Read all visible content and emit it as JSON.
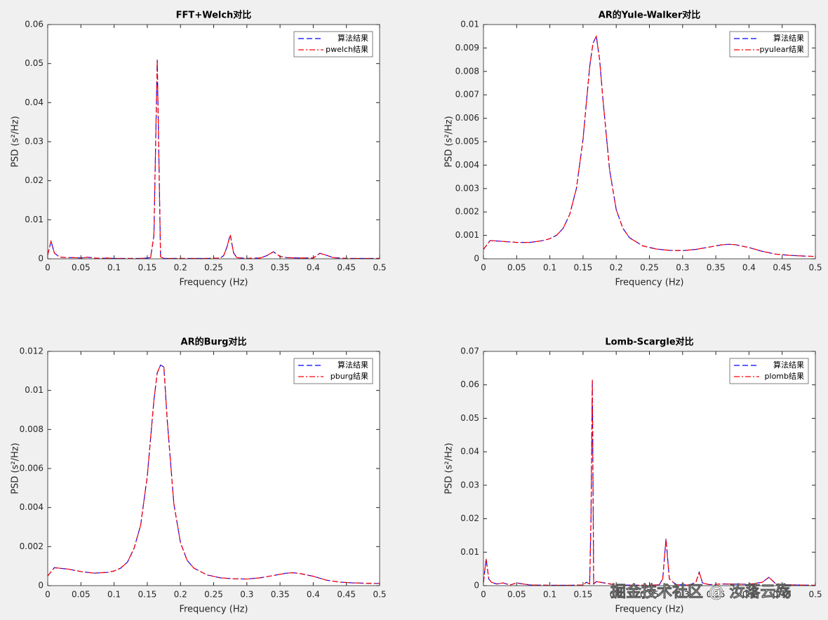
{
  "chart_data": [
    {
      "type": "line",
      "title": "FFT+Welch对比",
      "xlabel": "Frequency (Hz)",
      "ylabel": "PSD (s²/Hz)",
      "legend": "northeast",
      "xlim": [
        0,
        0.5
      ],
      "xticks": [
        0,
        0.05,
        0.1,
        0.15,
        0.2,
        0.25,
        0.3,
        0.35,
        0.4,
        0.45,
        0.5
      ],
      "ylim": [
        0,
        0.06
      ],
      "yticks": [
        0,
        0.01,
        0.02,
        0.03,
        0.04,
        0.05,
        0.06
      ],
      "x": [
        0,
        0.005,
        0.01,
        0.015,
        0.02,
        0.03,
        0.04,
        0.05,
        0.06,
        0.07,
        0.08,
        0.09,
        0.1,
        0.11,
        0.12,
        0.13,
        0.14,
        0.15,
        0.155,
        0.16,
        0.165,
        0.17,
        0.175,
        0.18,
        0.2,
        0.22,
        0.24,
        0.26,
        0.265,
        0.27,
        0.275,
        0.28,
        0.285,
        0.3,
        0.32,
        0.33,
        0.34,
        0.35,
        0.36,
        0.38,
        0.4,
        0.41,
        0.42,
        0.43,
        0.45,
        0.47,
        0.5
      ],
      "series": [
        {
          "name": "算法结果",
          "color": "#0000ff",
          "linestyle": "dashed",
          "values": [
            0.001,
            0.0045,
            0.0015,
            0.0008,
            0.0004,
            0.0003,
            0.0003,
            0.0002,
            0.0004,
            0.0002,
            0.0001,
            0.0002,
            0.0001,
            0.0001,
            0.0001,
            0.0001,
            0.0001,
            0.0002,
            0.0003,
            0.006,
            0.051,
            0.0005,
            0.0001,
            0.0001,
            0.0001,
            0.0001,
            0.0001,
            0.0002,
            0.0008,
            0.003,
            0.0062,
            0.0015,
            0.0003,
            0.0001,
            0.0002,
            0.0008,
            0.0018,
            0.0006,
            0.0003,
            0.0002,
            0.0002,
            0.0014,
            0.0009,
            0.0003,
            0.0001,
            0.0001,
            0.0001
          ]
        },
        {
          "name": "pwelch结果",
          "color": "#ff0000",
          "linestyle": "dashdot",
          "values": [
            0.001,
            0.0045,
            0.0015,
            0.0008,
            0.0004,
            0.0003,
            0.0003,
            0.0002,
            0.0004,
            0.0002,
            0.0001,
            0.0002,
            0.0001,
            0.0001,
            0.0001,
            0.0001,
            0.0001,
            0.0002,
            0.0003,
            0.006,
            0.051,
            0.0005,
            0.0001,
            0.0001,
            0.0001,
            0.0001,
            0.0001,
            0.0002,
            0.0008,
            0.003,
            0.0062,
            0.0015,
            0.0003,
            0.0001,
            0.0002,
            0.0008,
            0.0018,
            0.0006,
            0.0003,
            0.0002,
            0.0002,
            0.0014,
            0.0009,
            0.0003,
            0.0001,
            0.0001,
            0.0001
          ]
        }
      ]
    },
    {
      "type": "line",
      "title": "AR的Yule-Walker对比",
      "xlabel": "Frequency (Hz)",
      "ylabel": "PSD (s²/Hz)",
      "legend": "northeast",
      "xlim": [
        0,
        0.5
      ],
      "xticks": [
        0,
        0.05,
        0.1,
        0.15,
        0.2,
        0.25,
        0.3,
        0.35,
        0.4,
        0.45,
        0.5
      ],
      "ylim": [
        0,
        0.01
      ],
      "yticks": [
        0,
        0.001,
        0.002,
        0.003,
        0.004,
        0.005,
        0.006,
        0.007,
        0.008,
        0.009,
        0.01
      ],
      "x": [
        0,
        0.01,
        0.03,
        0.05,
        0.07,
        0.09,
        0.1,
        0.11,
        0.12,
        0.13,
        0.14,
        0.15,
        0.16,
        0.165,
        0.17,
        0.175,
        0.18,
        0.19,
        0.2,
        0.21,
        0.22,
        0.24,
        0.26,
        0.28,
        0.3,
        0.32,
        0.34,
        0.36,
        0.37,
        0.38,
        0.4,
        0.42,
        0.44,
        0.46,
        0.48,
        0.5
      ],
      "series": [
        {
          "name": "算法结果",
          "color": "#0000ff",
          "linestyle": "dashed",
          "values": [
            0.0004,
            0.00078,
            0.00074,
            0.0007,
            0.0007,
            0.00078,
            0.00086,
            0.001,
            0.0013,
            0.0019,
            0.003,
            0.0051,
            0.0082,
            0.0092,
            0.0095,
            0.0085,
            0.0068,
            0.0038,
            0.0021,
            0.0013,
            0.0009,
            0.00055,
            0.00042,
            0.00036,
            0.00035,
            0.0004,
            0.0005,
            0.0006,
            0.00062,
            0.0006,
            0.00048,
            0.00032,
            0.0002,
            0.00015,
            0.00012,
            0.0001
          ]
        },
        {
          "name": "pyulear结果",
          "color": "#ff0000",
          "linestyle": "dashdot",
          "values": [
            0.0004,
            0.00078,
            0.00074,
            0.0007,
            0.0007,
            0.00078,
            0.00086,
            0.001,
            0.0013,
            0.0019,
            0.003,
            0.0051,
            0.0082,
            0.0092,
            0.0095,
            0.0085,
            0.0068,
            0.0038,
            0.0021,
            0.0013,
            0.0009,
            0.00055,
            0.00042,
            0.00036,
            0.00035,
            0.0004,
            0.0005,
            0.0006,
            0.00062,
            0.0006,
            0.00048,
            0.00032,
            0.0002,
            0.00015,
            0.00012,
            0.0001
          ]
        }
      ]
    },
    {
      "type": "line",
      "title": "AR的Burg对比",
      "xlabel": "Frequency (Hz)",
      "ylabel": "PSD (s²/Hz)",
      "legend": "northeast",
      "xlim": [
        0,
        0.5
      ],
      "xticks": [
        0,
        0.05,
        0.1,
        0.15,
        0.2,
        0.25,
        0.3,
        0.35,
        0.4,
        0.45,
        0.5
      ],
      "ylim": [
        0,
        0.012
      ],
      "yticks": [
        0,
        0.002,
        0.004,
        0.006,
        0.008,
        0.01,
        0.012
      ],
      "x": [
        0,
        0.01,
        0.03,
        0.05,
        0.07,
        0.09,
        0.1,
        0.11,
        0.12,
        0.13,
        0.14,
        0.15,
        0.16,
        0.165,
        0.17,
        0.175,
        0.18,
        0.19,
        0.2,
        0.21,
        0.22,
        0.24,
        0.26,
        0.28,
        0.3,
        0.32,
        0.34,
        0.36,
        0.37,
        0.38,
        0.4,
        0.42,
        0.44,
        0.46,
        0.48,
        0.5
      ],
      "series": [
        {
          "name": "算法结果",
          "color": "#0000ff",
          "linestyle": "dashed",
          "values": [
            0.0005,
            0.00092,
            0.00085,
            0.00072,
            0.00064,
            0.00068,
            0.00075,
            0.0009,
            0.0012,
            0.0019,
            0.0031,
            0.0056,
            0.0095,
            0.0109,
            0.0113,
            0.0112,
            0.0085,
            0.0042,
            0.0022,
            0.0013,
            0.0009,
            0.00055,
            0.0004,
            0.00035,
            0.00034,
            0.0004,
            0.00052,
            0.00064,
            0.00066,
            0.00062,
            0.00048,
            0.00028,
            0.00018,
            0.00014,
            0.00012,
            0.00011
          ]
        },
        {
          "name": "pburg结果",
          "color": "#ff0000",
          "linestyle": "dashdot",
          "values": [
            0.0005,
            0.00092,
            0.00085,
            0.00072,
            0.00064,
            0.00068,
            0.00075,
            0.0009,
            0.0012,
            0.0019,
            0.0031,
            0.0056,
            0.0095,
            0.0109,
            0.0113,
            0.0112,
            0.0085,
            0.0042,
            0.0022,
            0.0013,
            0.0009,
            0.00055,
            0.0004,
            0.00035,
            0.00034,
            0.0004,
            0.00052,
            0.00064,
            0.00066,
            0.00062,
            0.00048,
            0.00028,
            0.00018,
            0.00014,
            0.00012,
            0.00011
          ]
        }
      ]
    },
    {
      "type": "line",
      "title": "Lomb-Scargle对比",
      "xlabel": "Frequency (Hz)",
      "ylabel": "PSD (s²/Hz)",
      "legend": "northeast",
      "xlim": [
        0,
        0.5
      ],
      "xticks": [
        0,
        0.05,
        0.1,
        0.15,
        0.2,
        0.25,
        0.3,
        0.35,
        0.4,
        0.45,
        0.5
      ],
      "ylim": [
        0,
        0.07
      ],
      "yticks": [
        0,
        0.01,
        0.02,
        0.03,
        0.04,
        0.05,
        0.06,
        0.07
      ],
      "x": [
        0,
        0.004,
        0.008,
        0.012,
        0.02,
        0.03,
        0.04,
        0.05,
        0.07,
        0.1,
        0.13,
        0.15,
        0.155,
        0.16,
        0.162,
        0.164,
        0.166,
        0.17,
        0.2,
        0.25,
        0.265,
        0.27,
        0.275,
        0.28,
        0.29,
        0.31,
        0.32,
        0.325,
        0.33,
        0.34,
        0.36,
        0.4,
        0.42,
        0.43,
        0.44,
        0.45,
        0.47,
        0.5
      ],
      "series": [
        {
          "name": "算法结果",
          "color": "#0000ff",
          "linestyle": "dashed",
          "values": [
            0.001,
            0.008,
            0.002,
            0.001,
            0.0005,
            0.0008,
            0.0002,
            0.0008,
            0.0002,
            0.0001,
            0.0001,
            0.0002,
            0.001,
            0.0005,
            0.02,
            0.0615,
            0.0005,
            0.0012,
            0.0002,
            0.0001,
            0.0003,
            0.002,
            0.014,
            0.002,
            0.0003,
            0.0002,
            0.001,
            0.004,
            0.0008,
            0.0003,
            0.0005,
            0.0004,
            0.001,
            0.0025,
            0.0006,
            0.0003,
            0.0002,
            0.0001
          ]
        },
        {
          "name": "plomb结果",
          "color": "#ff0000",
          "linestyle": "dashdot",
          "values": [
            0.001,
            0.008,
            0.002,
            0.001,
            0.0005,
            0.0008,
            0.0002,
            0.0008,
            0.0002,
            0.0001,
            0.0001,
            0.0002,
            0.001,
            0.0005,
            0.02,
            0.0615,
            0.0005,
            0.0012,
            0.0002,
            0.0001,
            0.0003,
            0.002,
            0.014,
            0.002,
            0.0003,
            0.0002,
            0.001,
            0.004,
            0.0008,
            0.0003,
            0.0005,
            0.0004,
            0.001,
            0.0025,
            0.0006,
            0.0003,
            0.0002,
            0.0001
          ]
        }
      ]
    }
  ],
  "watermark": "掘金技术社区 @ 汝落云殇"
}
